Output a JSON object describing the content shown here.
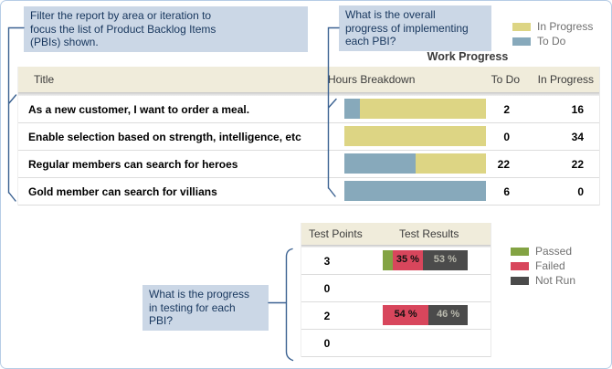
{
  "callouts": {
    "filter": {
      "text": "Filter the report by area or iteration to\nfocus the list of Product Backlog Items\n(PBIs) shown."
    },
    "overall": {
      "text": "What is the overall\nprogress of implementing\neach PBI?"
    },
    "testing": {
      "text": "What is the progress\nin testing for each\nPBI?"
    }
  },
  "colors": {
    "in_progress": "#ddd584",
    "to_do": "#87a9bb",
    "passed": "#83a343",
    "failed": "#d8465c",
    "not_run": "#4b4b4b",
    "callout_bg": "#cbd7e6",
    "callout_text": "#17365d",
    "bracket_line": "#3a6191",
    "header_bg": "#f0ecdb"
  },
  "work_progress": {
    "title": "Work Progress",
    "legend": [
      {
        "label": "In Progress",
        "color_key": "in_progress"
      },
      {
        "label": "To Do",
        "color_key": "to_do"
      }
    ],
    "columns": {
      "title": "Title",
      "hours": "Hours Breakdown",
      "todo": "To Do",
      "in_progress": "In Progress"
    },
    "rows": [
      {
        "title": "As a new customer, I want to order a meal.",
        "todo": 2,
        "in_progress": 16
      },
      {
        "title": "Enable selection based on strength, intelligence, etc",
        "todo": 0,
        "in_progress": 34
      },
      {
        "title": "Regular members can search for heroes",
        "todo": 22,
        "in_progress": 22
      },
      {
        "title": "Gold member can search for villians",
        "todo": 6,
        "in_progress": 0
      }
    ]
  },
  "test_progress": {
    "columns": {
      "points": "Test Points",
      "results": "Test Results"
    },
    "legend": [
      {
        "label": "Passed",
        "color_key": "passed"
      },
      {
        "label": "Failed",
        "color_key": "failed"
      },
      {
        "label": "Not Run",
        "color_key": "not_run"
      }
    ],
    "rows": [
      {
        "points": 3,
        "passed": 12,
        "failed": 35,
        "not_run": 53,
        "failed_label": "35 %",
        "not_run_label": "53 %"
      },
      {
        "points": 0
      },
      {
        "points": 2,
        "passed": 0,
        "failed": 54,
        "not_run": 46,
        "failed_label": "54 %",
        "not_run_label": "46 %"
      },
      {
        "points": 0
      }
    ]
  },
  "chart_data": [
    {
      "type": "bar",
      "title": "Work Progress (hours breakdown per PBI, stacked 100%)",
      "categories": [
        "As a new customer, I want to order a meal.",
        "Enable selection based on strength, intelligence, etc",
        "Regular members can search for heroes",
        "Gold member can search for villians"
      ],
      "series": [
        {
          "name": "To Do",
          "values": [
            2,
            0,
            22,
            6
          ]
        },
        {
          "name": "In Progress",
          "values": [
            16,
            34,
            22,
            0
          ]
        }
      ],
      "legend_position": "top-right"
    },
    {
      "type": "bar",
      "title": "Test Results (% per PBI, stacked 100%)",
      "categories": [
        3,
        0,
        2,
        0
      ],
      "series": [
        {
          "name": "Passed",
          "values": [
            12,
            0,
            0,
            0
          ]
        },
        {
          "name": "Failed",
          "values": [
            35,
            0,
            54,
            0
          ]
        },
        {
          "name": "Not Run",
          "values": [
            53,
            0,
            46,
            0
          ]
        }
      ],
      "legend_position": "right"
    }
  ]
}
